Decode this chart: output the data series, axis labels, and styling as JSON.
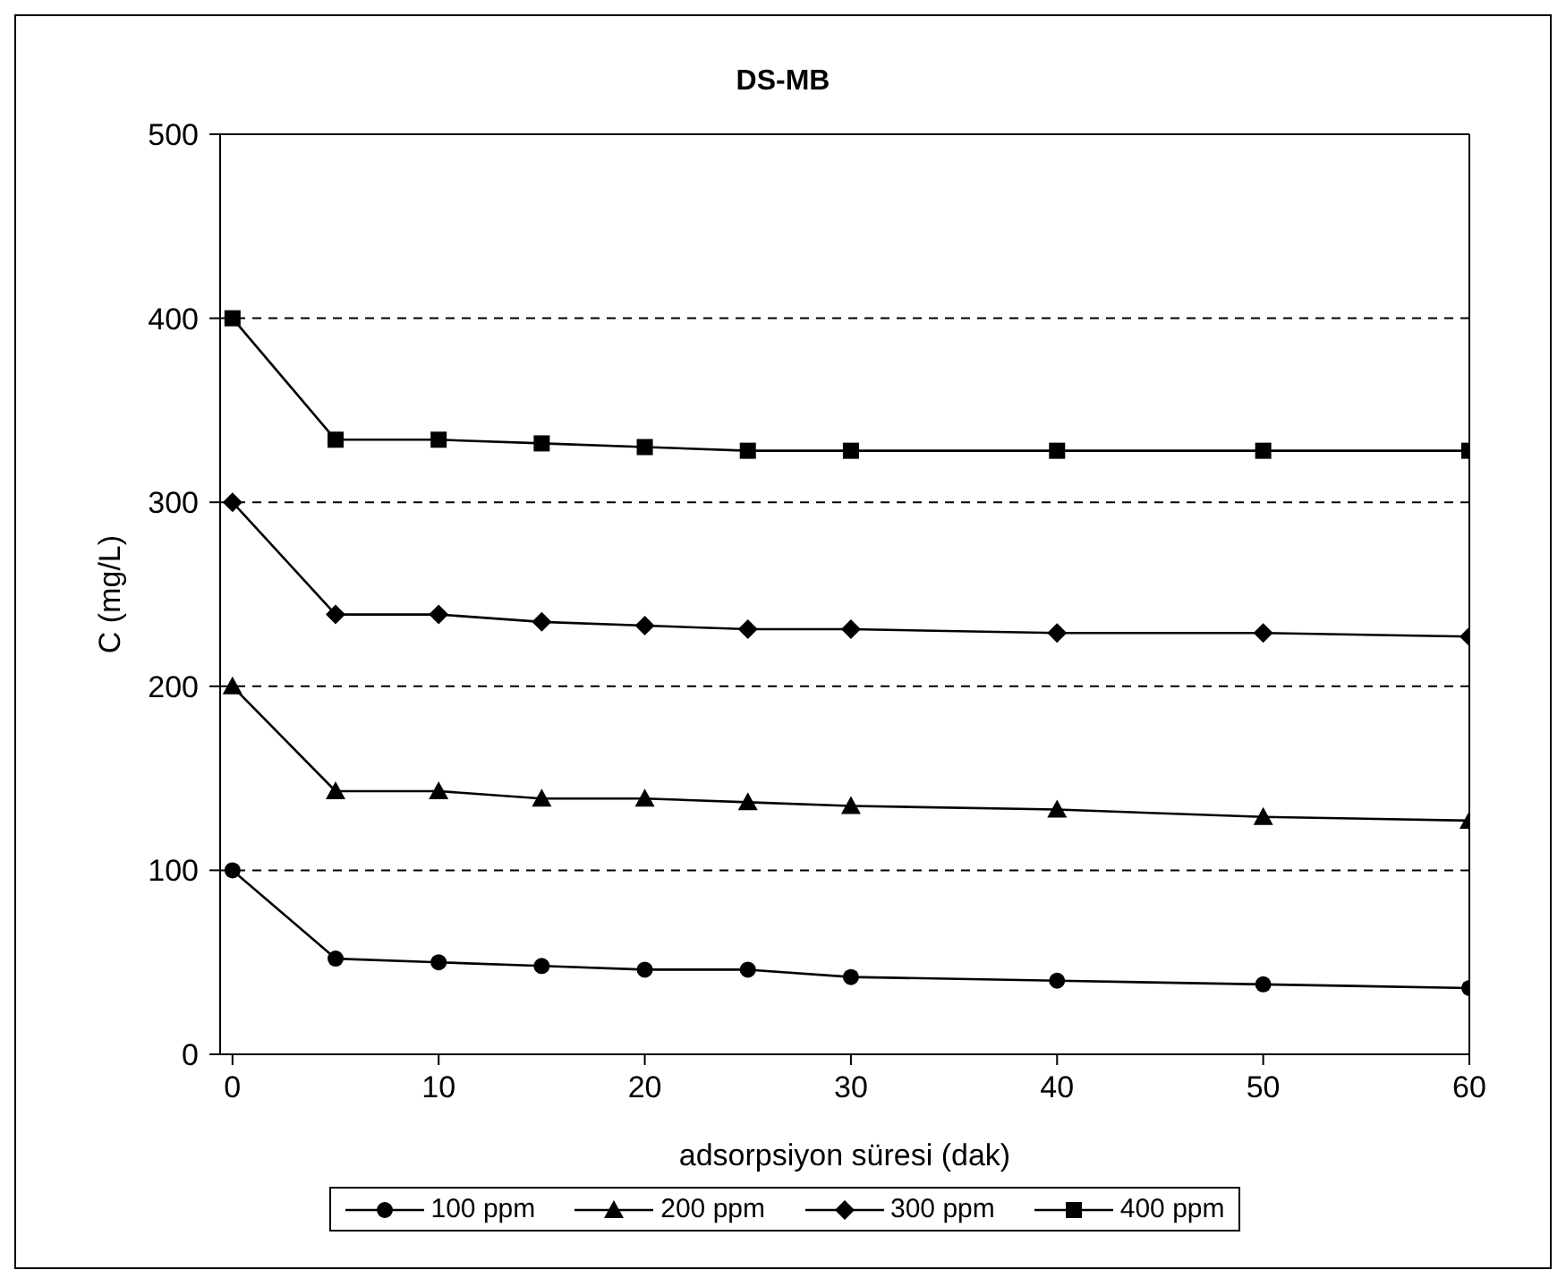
{
  "chart_data": {
    "type": "line",
    "title": "DS-MB",
    "xlabel": "adsorpsiyon süresi (dak)",
    "ylabel": "C (mg/L)",
    "x": [
      0,
      5,
      10,
      15,
      20,
      25,
      30,
      40,
      50,
      60
    ],
    "series": [
      {
        "name": "100 ppm",
        "color": "#000000",
        "marker": "circle",
        "values": [
          100,
          52,
          50,
          48,
          46,
          46,
          42,
          40,
          38,
          36
        ]
      },
      {
        "name": "200 ppm",
        "color": "#000000",
        "marker": "triangle",
        "values": [
          200,
          143,
          143,
          139,
          139,
          137,
          135,
          133,
          129,
          127
        ]
      },
      {
        "name": "300 ppm",
        "color": "#000000",
        "marker": "diamond",
        "values": [
          300,
          239,
          239,
          235,
          233,
          231,
          231,
          229,
          229,
          227
        ]
      },
      {
        "name": "400 ppm",
        "color": "#000000",
        "marker": "square",
        "values": [
          400,
          334,
          334,
          332,
          330,
          328,
          328,
          328,
          328,
          328
        ]
      }
    ],
    "xlim": [
      -0.6,
      60
    ],
    "xticks": [
      0,
      10,
      20,
      30,
      40,
      50,
      60
    ],
    "ylim": [
      0,
      500
    ],
    "yticks": [
      0,
      100,
      200,
      300,
      400,
      500
    ],
    "grid": "y",
    "legend": "bottom",
    "line_style": "solid"
  }
}
